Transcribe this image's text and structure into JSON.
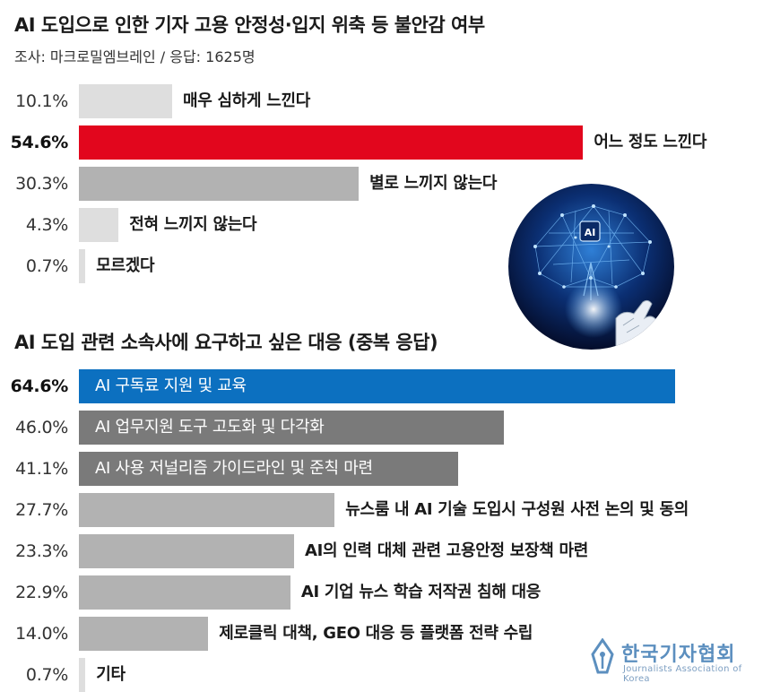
{
  "chart_data": [
    {
      "type": "bar",
      "orientation": "horizontal",
      "title": "AI 도입으로 인한 기자 고용 안정성·입지 위축 등 불안감 여부",
      "subtitle": "조사: 마크로밀엠브레인 / 응답: 1625명",
      "categories": [
        "매우 심하게 느낀다",
        "어느 정도 느낀다",
        "별로 느끼지 않는다",
        "전혀 느끼지 않는다",
        "모르겠다"
      ],
      "values": [
        10.1,
        54.6,
        30.3,
        4.3,
        0.7
      ],
      "value_labels": [
        "10.1%",
        "54.6%",
        "30.3%",
        "4.3%",
        "0.7%"
      ],
      "colors": [
        "#dedede",
        "#e2061d",
        "#b2b2b2",
        "#dedede",
        "#dedede"
      ],
      "highlight_index": 1,
      "xlim": [
        0,
        100
      ]
    },
    {
      "type": "bar",
      "orientation": "horizontal",
      "title": "AI 도입 관련 소속사에 요구하고 싶은 대응 (중복 응답)",
      "categories": [
        "AI 구독료 지원 및 교육",
        "AI 업무지원 도구 고도화 및 다각화",
        "AI 사용 저널리즘 가이드라인 및 준칙 마련",
        "뉴스룸 내 AI 기술 도입시 구성원 사전 논의 및 동의",
        "AI의 인력 대체 관련 고용안정 보장책 마련",
        "AI 기업 뉴스 학습 저작권 침해 대응",
        "제로클릭 대책, GEO 대응 등 플랫폼 전략 수립",
        "기타"
      ],
      "values": [
        64.6,
        46.0,
        41.1,
        27.7,
        23.3,
        22.9,
        14.0,
        0.7
      ],
      "value_labels": [
        "64.6%",
        "46.0%",
        "41.1%",
        "27.7%",
        "23.3%",
        "22.9%",
        "14.0%",
        "0.7%"
      ],
      "colors": [
        "#0c70c0",
        "#7a7a7a",
        "#7a7a7a",
        "#b2b2b2",
        "#b2b2b2",
        "#b2b2b2",
        "#b2b2b2",
        "#dedede"
      ],
      "label_inside": [
        true,
        true,
        true,
        false,
        false,
        false,
        false,
        false
      ],
      "highlight_index": 0,
      "xlim": [
        0,
        100
      ]
    }
  ],
  "image": {
    "icon": "ai-brain-robot-hand-icon",
    "badge_text": "AI"
  },
  "logo": {
    "icon": "pen-nib-logo-icon",
    "name": "한국기자협회",
    "subtitle": "Journalists Association of Korea"
  }
}
